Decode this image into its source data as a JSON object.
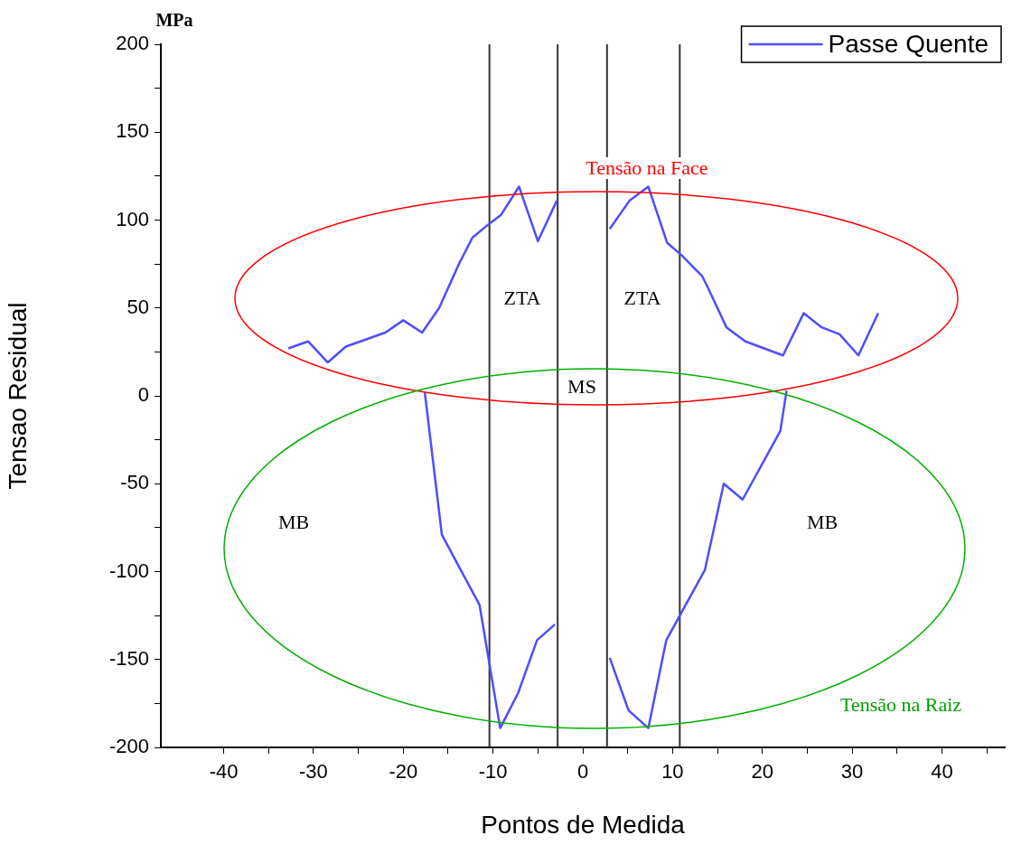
{
  "chart_data": {
    "type": "line",
    "xlabel": "Pontos de Medida",
    "ylabel": "Tensao Residual",
    "xlim": [
      -47,
      47
    ],
    "xticks": [
      -40,
      {
        "value": -35,
        "label": null
      },
      -30,
      {
        "value": -25,
        "label": null
      },
      -20,
      {
        "value": -15,
        "label": null
      },
      -10,
      {
        "value": -5,
        "label": null
      },
      0,
      {
        "value": 5,
        "label": null
      },
      10,
      {
        "value": 15,
        "label": null
      },
      20,
      {
        "value": 25,
        "label": null
      },
      30,
      {
        "value": 35,
        "label": null
      },
      40,
      {
        "value": 45,
        "label": null
      }
    ],
    "ylim": [
      -200,
      200
    ],
    "yticks": [
      -200,
      {
        "value": -175,
        "label": null
      },
      -150,
      {
        "value": -125,
        "label": null
      },
      -100,
      {
        "value": -75,
        "label": null
      },
      -50,
      {
        "value": -25,
        "label": null
      },
      0,
      {
        "value": 25,
        "label": null
      },
      50,
      {
        "value": 75,
        "label": null
      },
      100,
      {
        "value": 125,
        "label": null
      },
      150,
      {
        "value": 175,
        "label": null
      },
      200
    ],
    "series": [
      {
        "name": "Passe Quente",
        "color": "#4d4dff",
        "x": [
          -32.8,
          -30.6,
          -28.4,
          -26.4,
          -22.0,
          -20.0,
          -17.9,
          -16.0,
          -13.8,
          -12.3,
          -10.4,
          -9.1,
          -7.1,
          -5.0,
          -2.9
        ],
        "values": [
          27,
          31,
          19,
          28,
          36,
          43,
          36,
          50,
          75,
          90,
          98,
          103,
          119,
          88,
          111
        ]
      },
      {
        "color": "#4d4dff",
        "x": [
          3.0,
          5.2,
          7.3,
          9.4,
          11.0,
          13.3,
          13.8,
          16.0,
          18.1,
          22.3,
          24.6,
          26.6,
          28.6,
          30.7,
          32.9
        ],
        "values": [
          95,
          111,
          119,
          87,
          80,
          68,
          63,
          39,
          31,
          23,
          47,
          39,
          35,
          23,
          47
        ]
      },
      {
        "color": "#4d4dff",
        "x": [
          -17.6,
          -15.7,
          -11.5,
          -9.2,
          -7.2,
          -5.1,
          -3.1
        ],
        "values": [
          2,
          -79,
          -119,
          -189,
          -169,
          -139,
          -130
        ]
      },
      {
        "color": "#4d4dff",
        "x": [
          3.0,
          5.1,
          7.3,
          9.3,
          13.6,
          15.7,
          17.8,
          22.0,
          22.7
        ],
        "values": [
          -149,
          -179,
          -189,
          -139,
          -99,
          -50,
          -59,
          -20,
          3
        ]
      }
    ],
    "ref_lines": [
      {
        "axis": "x",
        "value": -10.4,
        "color": "#333333"
      },
      {
        "axis": "x",
        "value": -2.8,
        "color": "#333333"
      },
      {
        "axis": "x",
        "value": 2.7,
        "color": "#333333"
      },
      {
        "axis": "x",
        "value": 10.8,
        "color": "#333333"
      }
    ],
    "annotations": [
      "MPa",
      "Tensão na Face",
      "ZTA",
      "ZTA",
      "MS",
      "MB",
      "MB",
      "Tensão na Raiz"
    ],
    "legend": "top right",
    "grid": false,
    "marker": "none",
    "line_style": "solid"
  }
}
